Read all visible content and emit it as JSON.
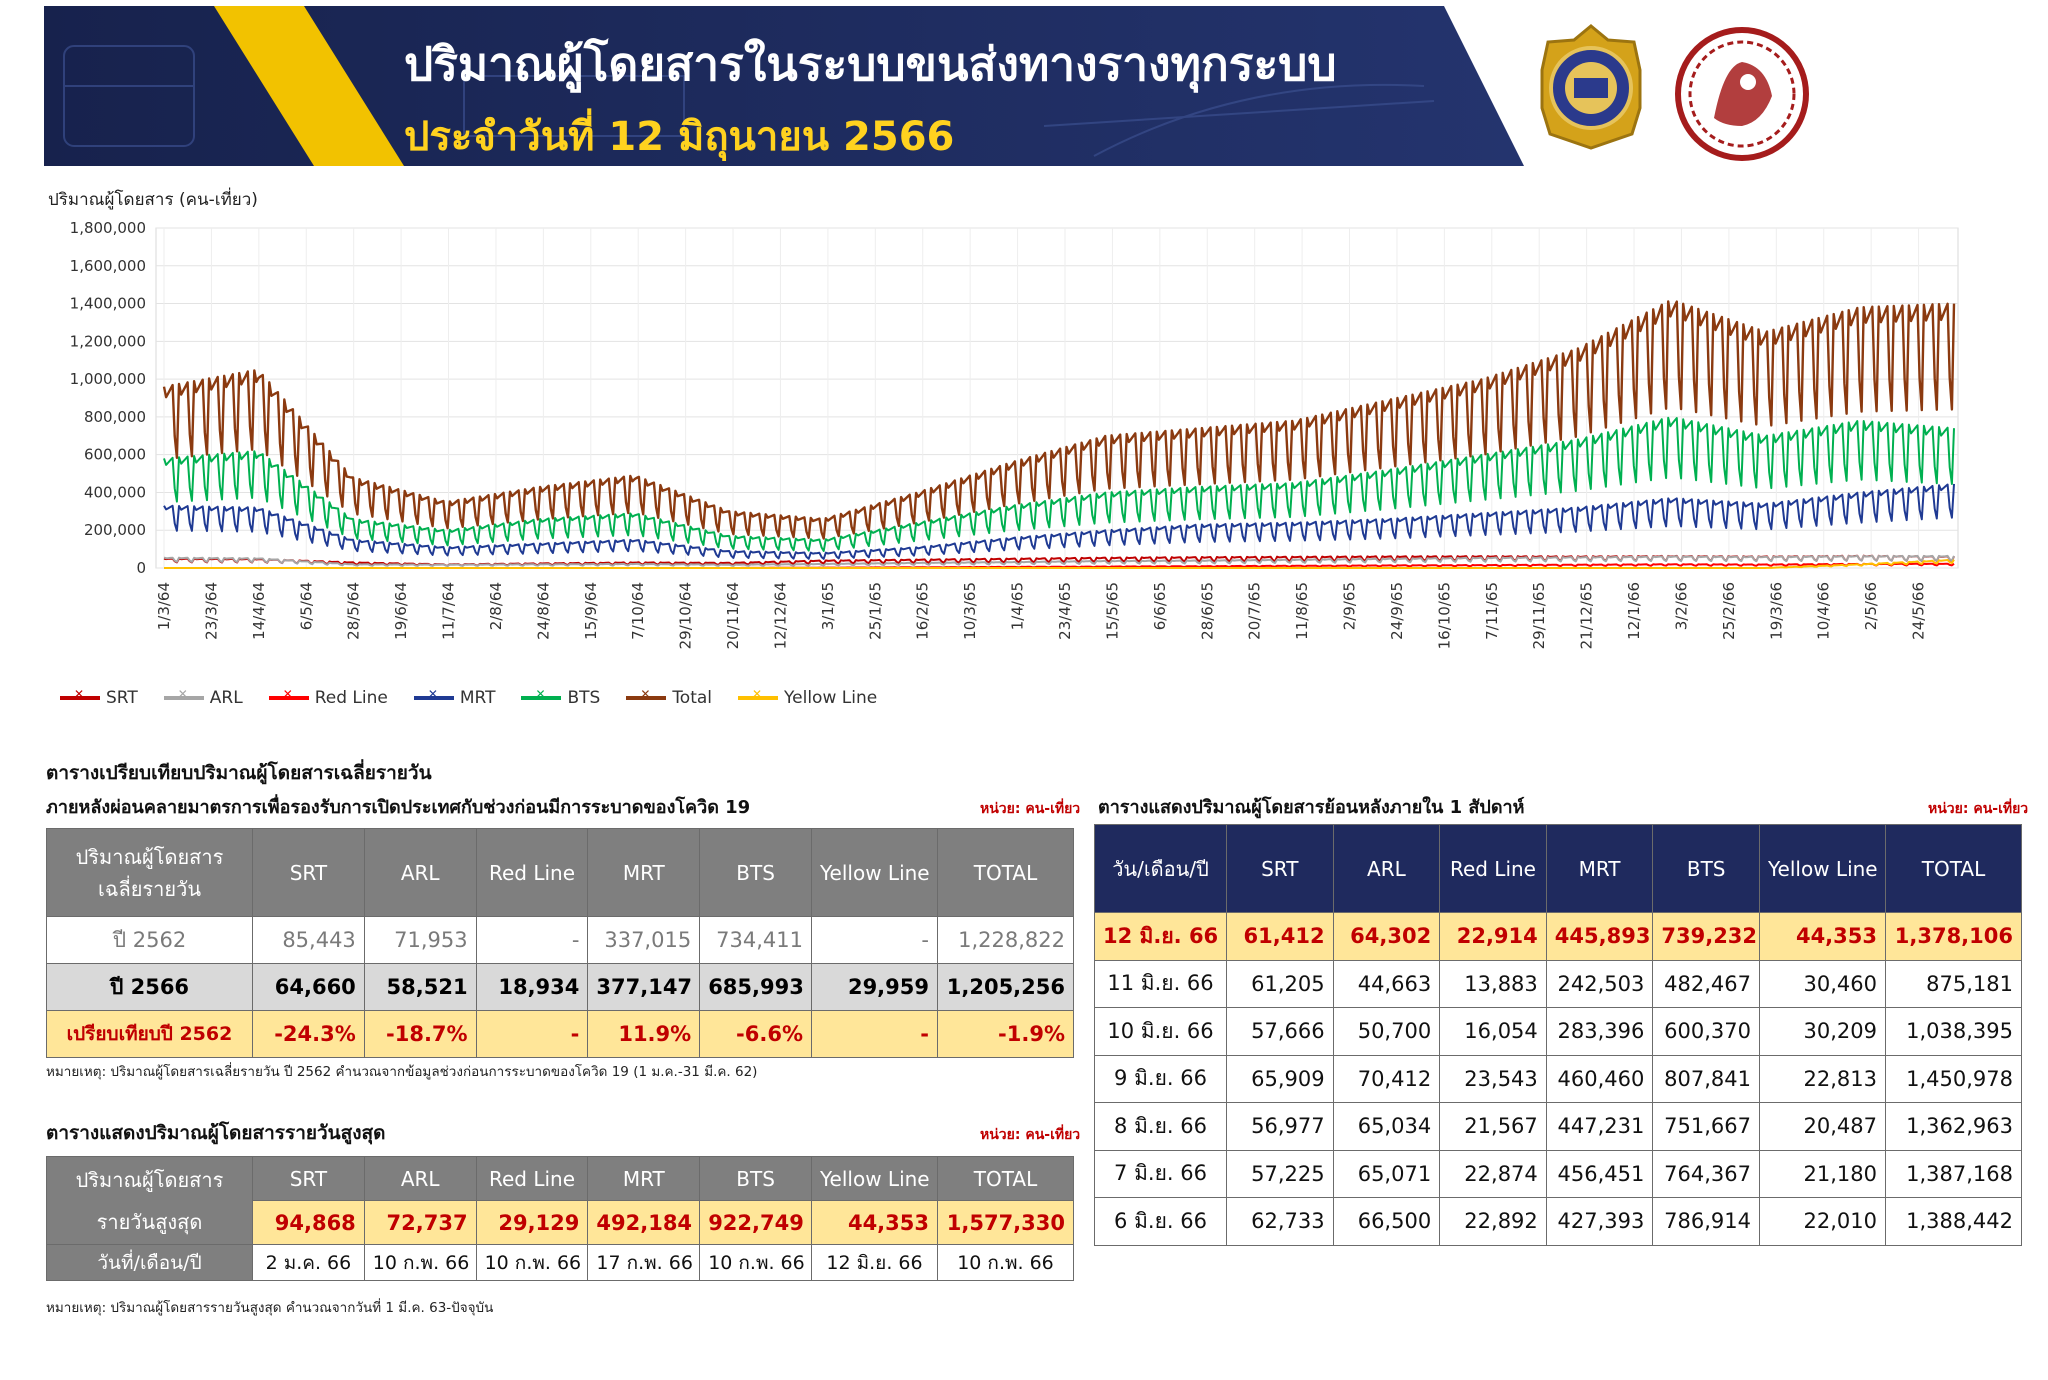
{
  "banner": {
    "title": "ปริมาณผู้โดยสารในระบบขนส่งทางรางทุกระบบ",
    "subtitle": "ประจำวันที่ 12 มิถุนายน 2566",
    "colors": {
      "bg": "#1d2a5c",
      "accent": "#f2c200",
      "subtitle": "#ffd21f"
    }
  },
  "chart_data": {
    "type": "line",
    "ylabel": "ปริมาณผู้โดยสาร (คน-เที่ยว)",
    "ylim": [
      0,
      1800000
    ],
    "yticks": [
      0,
      200000,
      400000,
      600000,
      800000,
      1000000,
      1200000,
      1400000,
      1600000,
      1800000
    ],
    "ytick_labels": [
      "0",
      "200,000",
      "400,000",
      "600,000",
      "800,000",
      "1,000,000",
      "1,200,000",
      "1,400,000",
      "1,600,000",
      "1,800,000"
    ],
    "x_tick_labels": [
      "1/3/64",
      "23/3/64",
      "14/4/64",
      "6/5/64",
      "28/5/64",
      "19/6/64",
      "11/7/64",
      "2/8/64",
      "24/8/64",
      "15/9/64",
      "7/10/64",
      "29/10/64",
      "20/11/64",
      "12/12/64",
      "3/1/65",
      "25/1/65",
      "16/2/65",
      "10/3/65",
      "1/4/65",
      "23/4/65",
      "15/5/65",
      "6/6/65",
      "28/6/65",
      "20/7/65",
      "11/8/65",
      "2/9/65",
      "24/9/65",
      "16/10/65",
      "7/11/65",
      "29/11/65",
      "21/12/65",
      "12/1/66",
      "3/2/66",
      "25/2/66",
      "19/3/66",
      "10/4/66",
      "2/5/66",
      "24/5/66"
    ],
    "grid": true,
    "legend_position": "bottom-left",
    "series": [
      {
        "name": "SRT",
        "color": "#c00000",
        "weekday_levels": [
          50000,
          48000,
          30000,
          20000,
          25000,
          30000,
          28000,
          40000,
          45000,
          50000,
          55000,
          58000,
          60000,
          62000,
          63000,
          62000,
          64000,
          62000,
          65000,
          62000
        ]
      },
      {
        "name": "ARL",
        "color": "#a6a6a6",
        "weekday_levels": [
          55000,
          52000,
          20000,
          18000,
          20000,
          22000,
          18000,
          22000,
          28000,
          32000,
          38000,
          40000,
          45000,
          50000,
          55000,
          58000,
          62000,
          60000,
          64000,
          64000
        ]
      },
      {
        "name": "Red Line",
        "color": "#ff0000",
        "weekday_levels": [
          0,
          0,
          0,
          0,
          0,
          0,
          0,
          2000,
          4000,
          6000,
          8000,
          10000,
          12000,
          14000,
          16000,
          18000,
          20000,
          19000,
          22000,
          23000
        ]
      },
      {
        "name": "MRT",
        "color": "#1f3a93",
        "weekday_levels": [
          330000,
          320000,
          150000,
          110000,
          130000,
          150000,
          90000,
          80000,
          110000,
          160000,
          200000,
          230000,
          240000,
          260000,
          290000,
          320000,
          370000,
          340000,
          400000,
          445000
        ]
      },
      {
        "name": "BTS",
        "color": "#00b050",
        "weekday_levels": [
          580000,
          620000,
          260000,
          200000,
          260000,
          290000,
          170000,
          150000,
          240000,
          330000,
          400000,
          430000,
          450000,
          520000,
          600000,
          680000,
          800000,
          700000,
          780000,
          740000
        ]
      },
      {
        "name": "Total",
        "color": "#8b3a10",
        "weekday_levels": [
          960000,
          1050000,
          480000,
          350000,
          430000,
          490000,
          300000,
          260000,
          400000,
          560000,
          700000,
          740000,
          780000,
          890000,
          1000000,
          1160000,
          1420000,
          1250000,
          1380000,
          1400000
        ]
      },
      {
        "name": "Yellow Line",
        "color": "#ffc000",
        "weekday_levels": [
          0,
          0,
          0,
          0,
          0,
          0,
          0,
          0,
          0,
          0,
          0,
          0,
          0,
          0,
          0,
          0,
          0,
          0,
          20000,
          44000
        ]
      }
    ]
  },
  "avg_table": {
    "heading1": "ตารางเปรียบเทียบปริมาณผู้โดยสารเฉลี่ยรายวัน",
    "heading2": "ภายหลังผ่อนคลายมาตรการเพื่อรองรับการเปิดประเทศกับช่วงก่อนมีการระบาดของโควิด 19",
    "unit": "หน่วย: คน-เที่ยว",
    "corner_line1": "ปริมาณผู้โดยสาร",
    "corner_line2": "เฉลี่ยรายวัน",
    "columns": [
      "SRT",
      "ARL",
      "Red Line",
      "MRT",
      "BTS",
      "Yellow Line",
      "TOTAL"
    ],
    "rows": [
      {
        "label": "ปี 2562",
        "values": [
          "85,443",
          "71,953",
          "-",
          "337,015",
          "734,411",
          "-",
          "1,228,822"
        ]
      },
      {
        "label": "ปี 2566",
        "values": [
          "64,660",
          "58,521",
          "18,934",
          "377,147",
          "685,993",
          "29,959",
          "1,205,256"
        ]
      },
      {
        "label": "เปรียบเทียบปี 2562",
        "values": [
          "-24.3%",
          "-18.7%",
          "-",
          "11.9%",
          "-6.6%",
          "-",
          "-1.9%"
        ]
      }
    ],
    "note": "หมายเหตุ:    ปริมาณผู้โดยสารเฉลี่ยรายวัน ปี 2562 คำนวณจากข้อมูลช่วงก่อนการระบาดของโควิด 19 (1 ม.ค.-31 มี.ค. 62)"
  },
  "max_table": {
    "heading": "ตารางแสดงปริมาณผู้โดยสารรายวันสูงสุด",
    "unit": "หน่วย: คน-เที่ยว",
    "corner_line1": "ปริมาณผู้โดยสาร",
    "corner_line2": "รายวันสูงสุด",
    "columns": [
      "SRT",
      "ARL",
      "Red Line",
      "MRT",
      "BTS",
      "Yellow Line",
      "TOTAL"
    ],
    "values": [
      "94,868",
      "72,737",
      "29,129",
      "492,184",
      "922,749",
      "44,353",
      "1,577,330"
    ],
    "date_label": "วันที่/เดือน/ปี",
    "dates": [
      "2 ม.ค. 66",
      "10 ก.พ. 66",
      "10 ก.พ. 66",
      "17 ก.พ. 66",
      "10 ก.พ. 66",
      "12 มิ.ย. 66",
      "10 ก.พ. 66"
    ],
    "note": "หมายเหตุ:    ปริมาณผู้โดยสารรายวันสูงสุด คำนวณจากวันที่ 1 มี.ค. 63-ปัจจุบัน"
  },
  "week_table": {
    "heading": "ตารางแสดงปริมาณผู้โดยสารย้อนหลังภายใน 1 สัปดาห์",
    "unit": "หน่วย: คน-เที่ยว",
    "columns": [
      "วัน/เดือน/ปี",
      "SRT",
      "ARL",
      "Red Line",
      "MRT",
      "BTS",
      "Yellow Line",
      "TOTAL"
    ],
    "rows": [
      {
        "date": "12 มิ.ย. 66",
        "values": [
          "61,412",
          "64,302",
          "22,914",
          "445,893",
          "739,232",
          "44,353",
          "1,378,106"
        ]
      },
      {
        "date": "11 มิ.ย. 66",
        "values": [
          "61,205",
          "44,663",
          "13,883",
          "242,503",
          "482,467",
          "30,460",
          "875,181"
        ]
      },
      {
        "date": "10 มิ.ย. 66",
        "values": [
          "57,666",
          "50,700",
          "16,054",
          "283,396",
          "600,370",
          "30,209",
          "1,038,395"
        ]
      },
      {
        "date": "9 มิ.ย. 66",
        "values": [
          "65,909",
          "70,412",
          "23,543",
          "460,460",
          "807,841",
          "22,813",
          "1,450,978"
        ]
      },
      {
        "date": "8 มิ.ย. 66",
        "values": [
          "56,977",
          "65,034",
          "21,567",
          "447,231",
          "751,667",
          "20,487",
          "1,362,963"
        ]
      },
      {
        "date": "7 มิ.ย. 66",
        "values": [
          "57,225",
          "65,071",
          "22,874",
          "456,451",
          "764,367",
          "21,180",
          "1,387,168"
        ]
      },
      {
        "date": "6 มิ.ย. 66",
        "values": [
          "62,733",
          "66,500",
          "22,892",
          "427,393",
          "786,914",
          "22,010",
          "1,388,442"
        ]
      }
    ]
  }
}
